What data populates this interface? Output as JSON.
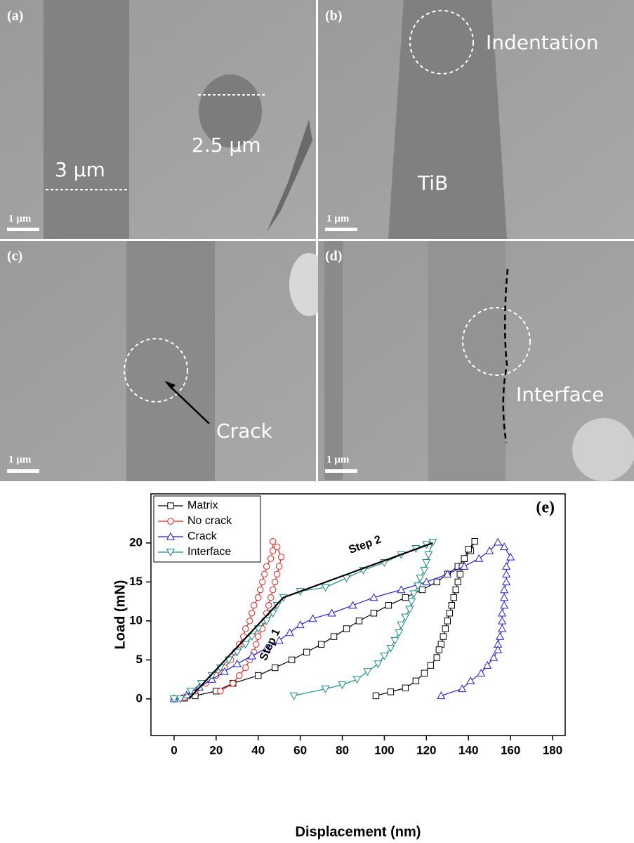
{
  "panels": [
    {
      "label": "(a)",
      "texts": [
        "3 µm",
        "2.5 µm"
      ],
      "scale": "1 µm"
    },
    {
      "label": "(b)",
      "texts": [
        "Indentation",
        "TiB"
      ],
      "scale": "1 µm"
    },
    {
      "label": "(c)",
      "texts": [
        "Crack"
      ],
      "scale": "1 µm"
    },
    {
      "label": "(d)",
      "texts": [
        "Interface"
      ],
      "scale": "1 µm"
    }
  ],
  "chart_data": {
    "type": "line",
    "panel_label": "(e)",
    "x_label": "Displacement (nm)",
    "y_label": "Load (mN)",
    "xlim": [
      -11,
      186
    ],
    "ylim": [
      -4.7,
      26.3
    ],
    "xticks": [
      0,
      20,
      40,
      60,
      80,
      100,
      120,
      140,
      160,
      180
    ],
    "yticks": [
      0,
      5,
      10,
      15,
      20
    ],
    "legend": "upper left",
    "annotations": [
      "Step 1",
      "Step 2"
    ],
    "series": [
      {
        "name": "Matrix",
        "color": "#000000",
        "marker": "square",
        "x": [
          0,
          5,
          10,
          20,
          28,
          40,
          48,
          56,
          63,
          70,
          76,
          82,
          88,
          95,
          102,
          110,
          118,
          125,
          130,
          135,
          138,
          141,
          143,
          140,
          138,
          137,
          136,
          135,
          134,
          133,
          132,
          131,
          130,
          129,
          128,
          127,
          126,
          125,
          122,
          119,
          115,
          110,
          103,
          96
        ],
        "values": [
          0,
          0.1,
          0.4,
          1,
          2,
          3,
          4,
          5,
          6,
          7,
          8,
          9,
          10,
          11,
          12,
          13,
          14,
          15,
          16,
          17,
          18,
          19,
          20.2,
          19.2,
          18,
          17,
          16,
          15,
          14,
          13,
          12,
          11,
          10,
          9,
          8,
          7,
          6.3,
          5.3,
          4.3,
          3.3,
          2.3,
          1.4,
          0.9,
          0.4
        ]
      },
      {
        "name": "No crack",
        "color": "#e8201a",
        "marker": "circle",
        "x": [
          0,
          5,
          10,
          15,
          20,
          24,
          27,
          29,
          31,
          33,
          34,
          36,
          37,
          38,
          40,
          41,
          42,
          43,
          44,
          46,
          47,
          47,
          49,
          51,
          50,
          49,
          48,
          47,
          46,
          45,
          44,
          43,
          42,
          40,
          39,
          38,
          36,
          34,
          31,
          28,
          22
        ],
        "values": [
          0,
          0.2,
          1,
          2,
          3,
          4,
          5,
          6,
          7,
          8,
          9,
          10,
          11,
          12,
          13,
          14,
          15,
          16,
          17,
          18,
          19,
          20.2,
          19.5,
          18.2,
          17,
          16,
          15,
          14,
          13,
          12,
          11,
          10,
          9,
          8,
          7,
          6,
          5,
          4,
          3,
          2,
          1
        ]
      },
      {
        "name": "Crack",
        "color": "#1f1fd6",
        "marker": "triangle-up",
        "x": [
          0,
          6,
          12,
          18,
          24,
          30,
          37,
          44,
          50,
          55,
          60,
          66,
          75,
          85,
          95,
          108,
          120,
          130,
          138,
          145,
          150,
          154,
          157,
          160,
          158,
          158,
          158,
          157,
          157,
          157,
          156,
          156,
          156,
          155,
          154,
          154,
          152,
          149,
          146,
          141,
          137,
          127
        ],
        "values": [
          0,
          0.5,
          1.5,
          2.5,
          3.5,
          4.5,
          5.5,
          6.5,
          7.5,
          8.5,
          9.5,
          10.3,
          11,
          12,
          13,
          14,
          15,
          16,
          17,
          18,
          19,
          20.1,
          19.5,
          18.2,
          17,
          16,
          15,
          14,
          13,
          12,
          11,
          10,
          9,
          8,
          7,
          6.3,
          5.3,
          4.3,
          3.3,
          2.3,
          1.3,
          0.4
        ]
      },
      {
        "name": "Interface",
        "color": "#1a8a86",
        "marker": "triangle-down",
        "x": [
          0,
          3,
          8,
          13,
          18,
          22,
          26,
          30,
          34,
          37,
          40,
          44,
          47,
          49,
          52,
          60,
          72,
          82,
          90,
          100,
          108,
          115,
          120,
          123,
          121,
          120,
          119,
          117,
          116,
          114,
          113,
          112,
          110,
          108,
          107,
          105,
          103,
          100,
          97,
          92,
          87,
          80,
          72,
          57
        ],
        "values": [
          0,
          0,
          1,
          2,
          3,
          4,
          5,
          6,
          7,
          8,
          9,
          10,
          11,
          12,
          13,
          13.8,
          14.3,
          15.5,
          16.5,
          17.5,
          18.5,
          19.3,
          19.8,
          20.1,
          18.5,
          17.5,
          16.5,
          15.5,
          14.5,
          13.5,
          12.5,
          11.5,
          10.5,
          9.5,
          8.5,
          7.5,
          6.5,
          5.5,
          4.5,
          3.5,
          2.5,
          1.8,
          1.3,
          0.4
        ]
      },
      {
        "color": "#000000",
        "marker": "none",
        "x": [
          7,
          52,
          123
        ],
        "values": [
          0,
          13,
          20
        ]
      }
    ]
  }
}
